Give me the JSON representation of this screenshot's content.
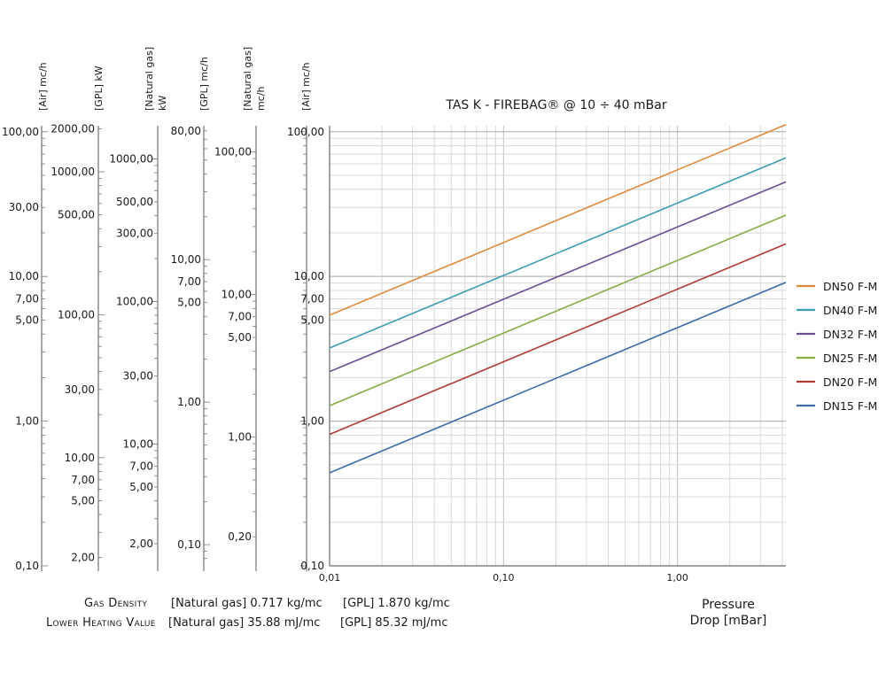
{
  "chart_data": {
    "type": "line",
    "title": "TAS K - FIREBAG® @ 10 ÷ 40 mBar",
    "xlabel": "Pressure Drop [mBar]",
    "xlabel_lines": [
      "Pressure",
      "Drop [mBar]"
    ],
    "x_scale": "log",
    "y_scale": "log",
    "xlim": [
      0.01,
      4.2
    ],
    "ylim": [
      0.1,
      110
    ],
    "x_ticks": [
      {
        "value": 0.01,
        "label": "0,01"
      },
      {
        "value": 0.1,
        "label": "0,10"
      },
      {
        "value": 1,
        "label": "1,00"
      }
    ],
    "y_ticks": [
      {
        "value": 100,
        "label": "100,00"
      },
      {
        "value": 10,
        "label": "10,00"
      },
      {
        "value": 7,
        "label": "7,00"
      },
      {
        "value": 5,
        "label": "5,00"
      },
      {
        "value": 1,
        "label": "1,00"
      },
      {
        "value": 0.1,
        "label": "0,10"
      }
    ],
    "grid": true,
    "legend_position": "right",
    "series": [
      {
        "name": "DN50 F-M",
        "color": "#e08a3c",
        "x": [
          0.01,
          4.2
        ],
        "y": [
          5.4,
          112
        ]
      },
      {
        "name": "DN40 F-M",
        "color": "#3a9db4",
        "x": [
          0.01,
          4.2
        ],
        "y": [
          3.2,
          66
        ]
      },
      {
        "name": "DN32 F-M",
        "color": "#6a4f94",
        "x": [
          0.01,
          4.2
        ],
        "y": [
          2.2,
          45
        ]
      },
      {
        "name": "DN25 F-M",
        "color": "#84ad44",
        "x": [
          0.01,
          4.2
        ],
        "y": [
          1.28,
          26.5
        ]
      },
      {
        "name": "DN20 F-M",
        "color": "#b23a35",
        "x": [
          0.01,
          4.2
        ],
        "y": [
          0.81,
          16.8
        ]
      },
      {
        "name": "DN15 F-M",
        "color": "#3a6aa8",
        "x": [
          0.01,
          4.2
        ],
        "y": [
          0.44,
          9.1
        ]
      }
    ],
    "side_axes": [
      {
        "id": "air-left",
        "title_lines": [
          "[Air] mc/h"
        ],
        "min": 0.1,
        "max": 110,
        "ticks": [
          {
            "value": 100,
            "label": "100,00"
          },
          {
            "value": 30,
            "label": "30,00"
          },
          {
            "value": 10,
            "label": "10,00"
          },
          {
            "value": 7,
            "label": "7,00"
          },
          {
            "value": 5,
            "label": "5,00"
          },
          {
            "value": 1,
            "label": "1,00"
          },
          {
            "value": 0.1,
            "label": "0,10"
          }
        ]
      },
      {
        "id": "gpl-kw",
        "title_lines": [
          "[GPL] kW"
        ],
        "min": 1.75,
        "max": 2100,
        "ticks": [
          {
            "value": 2000,
            "label": "2000,00"
          },
          {
            "value": 1000,
            "label": "1000,00"
          },
          {
            "value": 500,
            "label": "500,00"
          },
          {
            "value": 100,
            "label": "100,00"
          },
          {
            "value": 30,
            "label": "30,00"
          },
          {
            "value": 10,
            "label": "10,00"
          },
          {
            "value": 7,
            "label": "7,00"
          },
          {
            "value": 5,
            "label": "5,00"
          },
          {
            "value": 2,
            "label": "2,00"
          }
        ]
      },
      {
        "id": "natgas-kw",
        "title_lines": [
          "[Natural gas]",
          "kW"
        ],
        "min": 1.4,
        "max": 1710,
        "ticks": [
          {
            "value": 1000,
            "label": "1000,00"
          },
          {
            "value": 500,
            "label": "500,00"
          },
          {
            "value": 300,
            "label": "300,00"
          },
          {
            "value": 100,
            "label": "100,00"
          },
          {
            "value": 30,
            "label": "30,00"
          },
          {
            "value": 10,
            "label": "10,00"
          },
          {
            "value": 7,
            "label": "7,00"
          },
          {
            "value": 5,
            "label": "5,00"
          },
          {
            "value": 2,
            "label": "2,00"
          }
        ]
      },
      {
        "id": "gpl-mch",
        "title_lines": [
          "[GPL] mc/h"
        ],
        "min": 0.071,
        "max": 87,
        "ticks": [
          {
            "value": 80,
            "label": "80,00"
          },
          {
            "value": 10,
            "label": "10,00"
          },
          {
            "value": 7,
            "label": "7,00"
          },
          {
            "value": 5,
            "label": "5,00"
          },
          {
            "value": 1,
            "label": "1,00"
          },
          {
            "value": 0.1,
            "label": "0,10"
          }
        ]
      },
      {
        "id": "natgas-mch",
        "title_lines": [
          "[Natural gas]",
          "mc/h"
        ],
        "min": 0.125,
        "max": 153,
        "ticks": [
          {
            "value": 100,
            "label": "100,00"
          },
          {
            "value": 10,
            "label": "10,00"
          },
          {
            "value": 7,
            "label": "7,00"
          },
          {
            "value": 5,
            "label": "5,00"
          },
          {
            "value": 1,
            "label": "1,00"
          },
          {
            "value": 0.2,
            "label": "0,20"
          }
        ]
      },
      {
        "id": "air-right",
        "title_lines": [
          "[Air] mc/h"
        ],
        "min": 0.1,
        "max": 110,
        "ticks": []
      }
    ]
  },
  "footer": {
    "density_label": "Gas Density",
    "density_natgas": "[Natural gas] 0.717 kg/mc",
    "density_gpl": "[GPL] 1.870 kg/mc",
    "lhv_label": "Lower Heating Value",
    "lhv_natgas": "[Natural gas] 35.88 mJ/mc",
    "lhv_gpl": "[GPL] 85.32 mJ/mc"
  }
}
